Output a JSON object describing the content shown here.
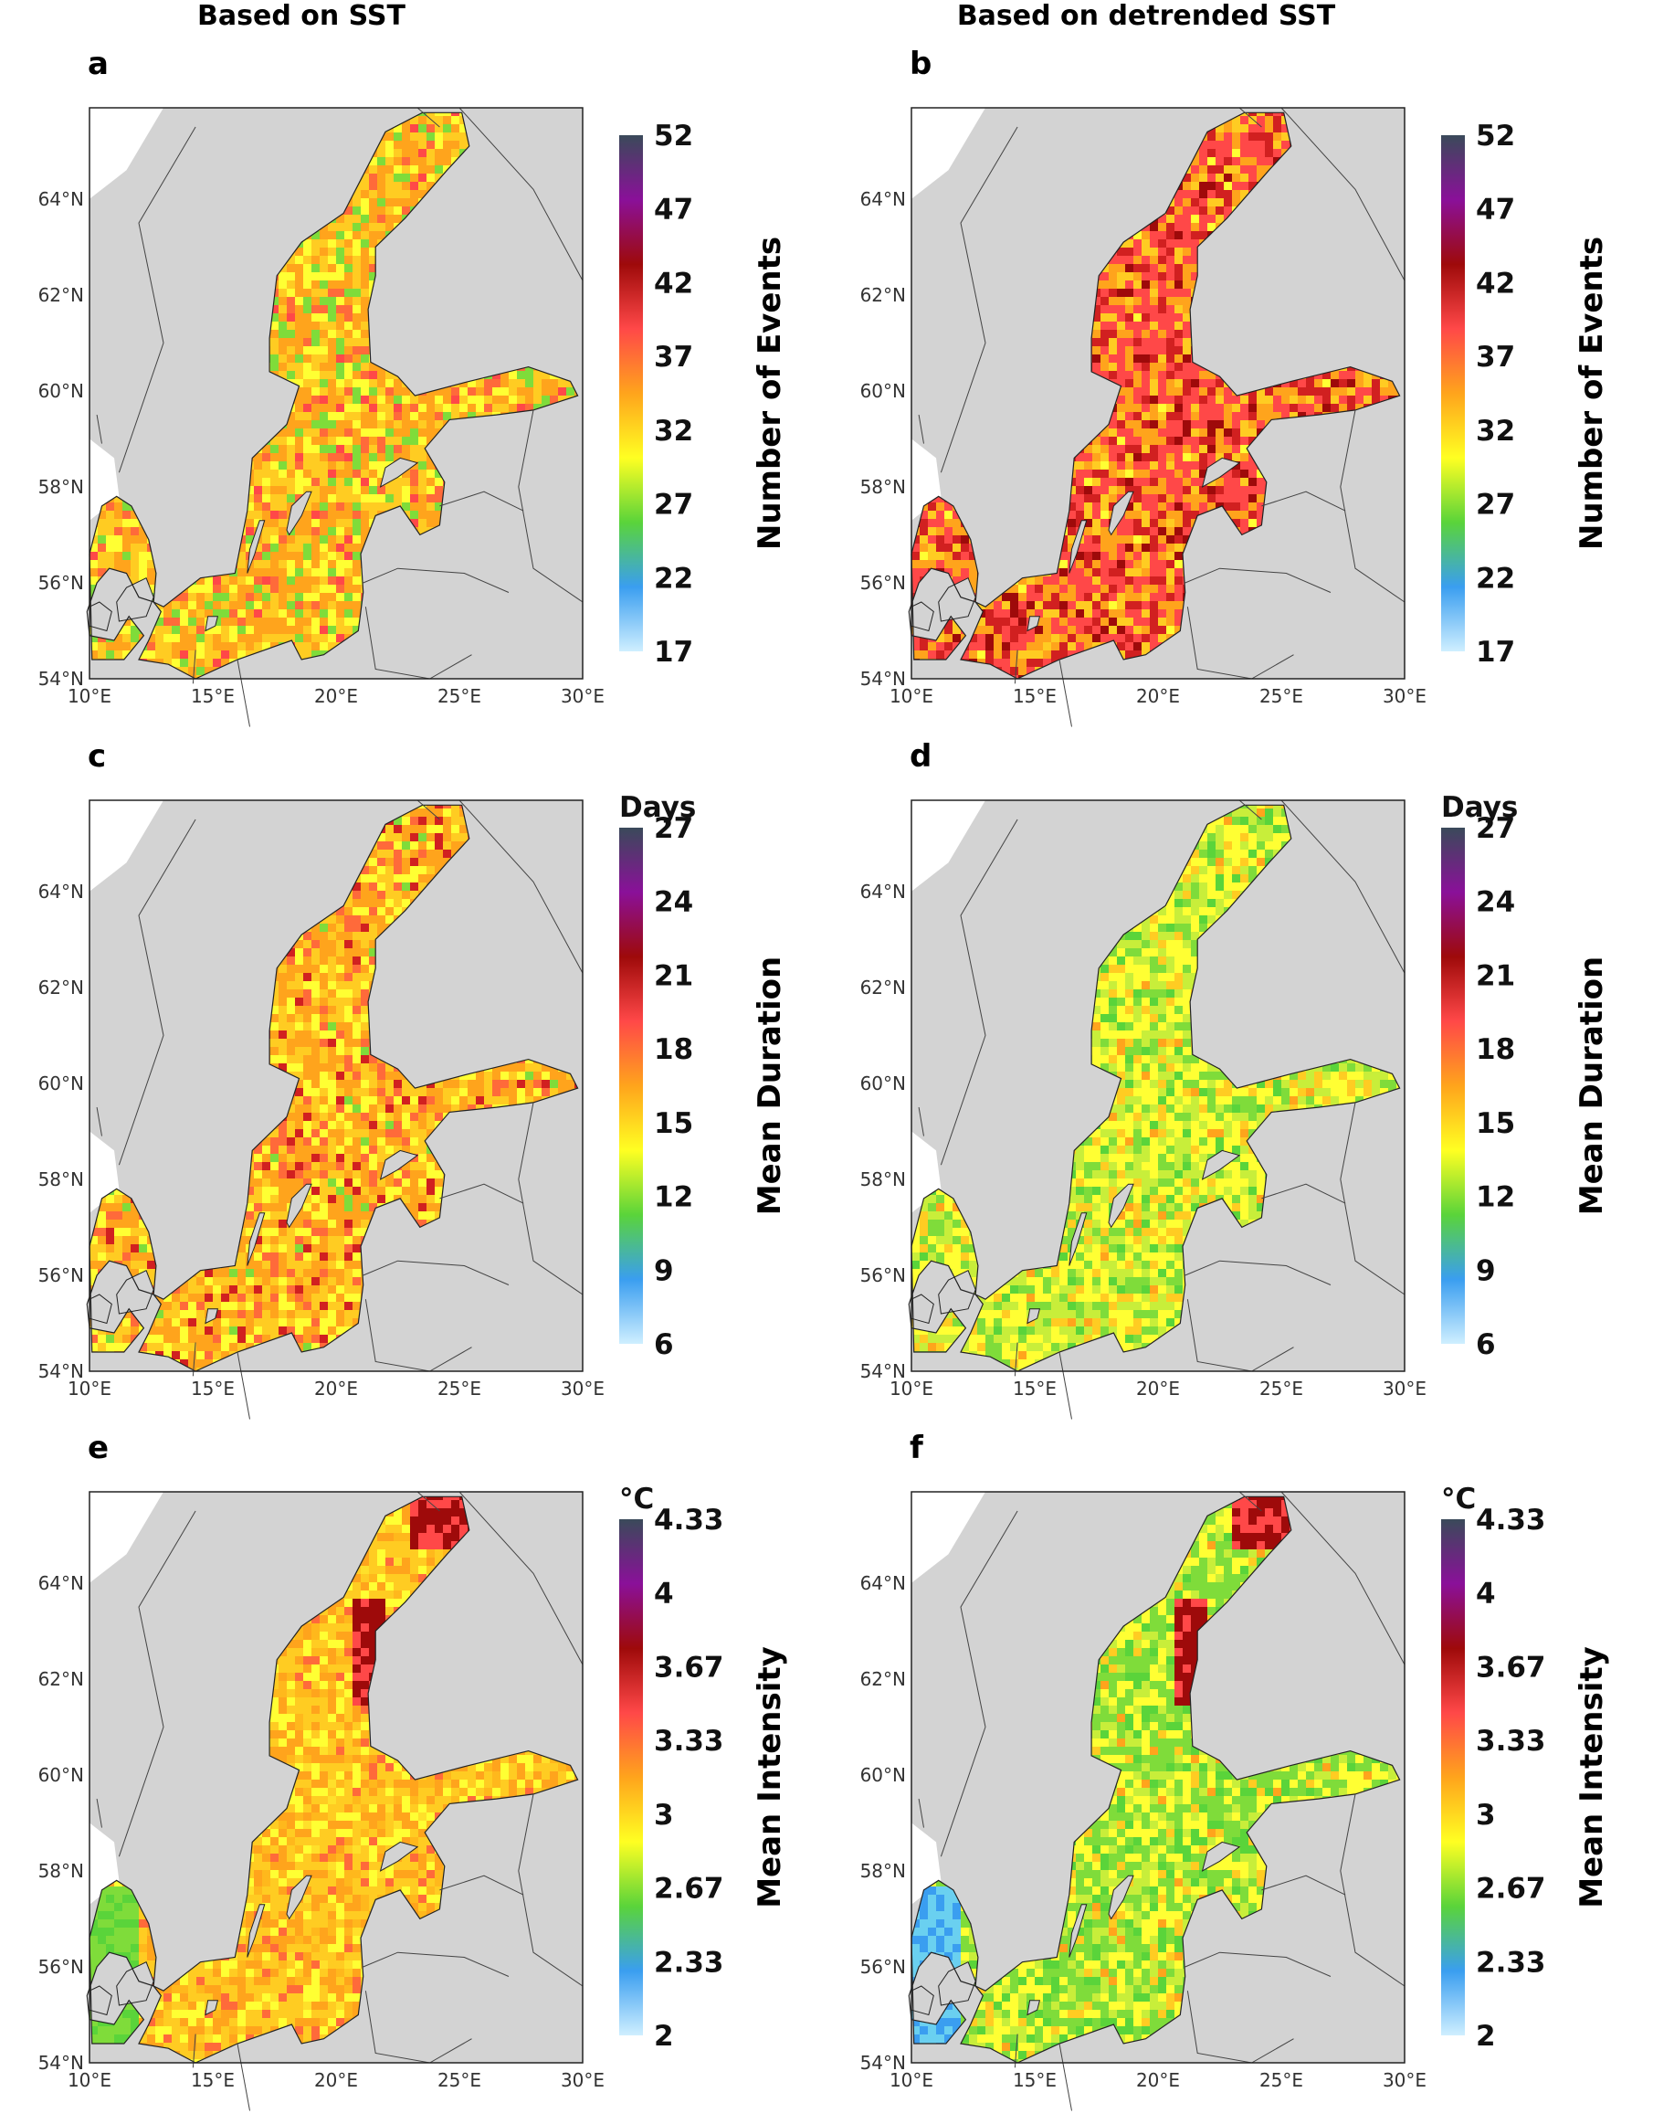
{
  "column_titles": [
    "Based on SST",
    "Based on detrended SST"
  ],
  "x_ticks": [
    "10°E",
    "15°E",
    "20°E",
    "25°E",
    "30°E"
  ],
  "y_ticks": [
    "54°N",
    "56°N",
    "58°N",
    "60°N",
    "62°N",
    "64°N"
  ],
  "panels": [
    {
      "letter": "a"
    },
    {
      "letter": "b"
    },
    {
      "letter": "c"
    },
    {
      "letter": "d"
    },
    {
      "letter": "e"
    },
    {
      "letter": "f"
    }
  ],
  "colorbars": {
    "events": {
      "label": "Number of Events",
      "unit": "",
      "ticks": [
        "52",
        "47",
        "42",
        "37",
        "32",
        "27",
        "22",
        "17"
      ]
    },
    "duration": {
      "label": "Mean Duration",
      "unit": "Days",
      "ticks": [
        "27",
        "24",
        "21",
        "18",
        "15",
        "12",
        "9",
        "6"
      ]
    },
    "intensity": {
      "label": "Mean Intensity",
      "unit": "°C",
      "ticks": [
        "4.33",
        "4",
        "3.67",
        "3.33",
        "3",
        "2.67",
        "2.33",
        "2"
      ]
    }
  },
  "colors": {
    "land": "#d3d3d3",
    "sea": "#ffffff",
    "scale": [
      "#cfefff",
      "#3a9ef0",
      "#5ad43a",
      "#ffff22",
      "#ffa41c",
      "#ff4848",
      "#9e0a0a",
      "#8a1099",
      "#3a4a5a"
    ]
  },
  "chart_data": [
    {
      "type": "heatmap",
      "panel": "a",
      "title": "Based on SST",
      "xlim": [
        10,
        30
      ],
      "ylim": [
        54,
        65.9
      ],
      "variable": "Number of Events",
      "range": [
        17,
        52
      ],
      "dominant_levels": [
        30,
        34
      ]
    },
    {
      "type": "heatmap",
      "panel": "b",
      "title": "Based on detrended SST",
      "xlim": [
        10,
        30
      ],
      "ylim": [
        54,
        65.9
      ],
      "variable": "Number of Events",
      "range": [
        17,
        52
      ],
      "dominant_levels": [
        34,
        39
      ]
    },
    {
      "type": "heatmap",
      "panel": "c",
      "xlim": [
        10,
        30
      ],
      "ylim": [
        54,
        65.9
      ],
      "variable": "Mean Duration",
      "unit": "Days",
      "range": [
        6,
        27
      ],
      "dominant_levels": [
        14,
        17
      ]
    },
    {
      "type": "heatmap",
      "panel": "d",
      "xlim": [
        10,
        30
      ],
      "ylim": [
        54,
        65.9
      ],
      "variable": "Mean Duration",
      "unit": "Days",
      "range": [
        6,
        27
      ],
      "dominant_levels": [
        11,
        14
      ]
    },
    {
      "type": "heatmap",
      "panel": "e",
      "xlim": [
        10,
        30
      ],
      "ylim": [
        54,
        65.9
      ],
      "variable": "Mean Intensity",
      "unit": "°C",
      "range": [
        2,
        4.33
      ],
      "dominant_levels": [
        2.8,
        3.0
      ]
    },
    {
      "type": "heatmap",
      "panel": "f",
      "xlim": [
        10,
        30
      ],
      "ylim": [
        54,
        65.9
      ],
      "variable": "Mean Intensity",
      "unit": "°C",
      "range": [
        2,
        4.33
      ],
      "dominant_levels": [
        2.6,
        2.8
      ]
    }
  ]
}
